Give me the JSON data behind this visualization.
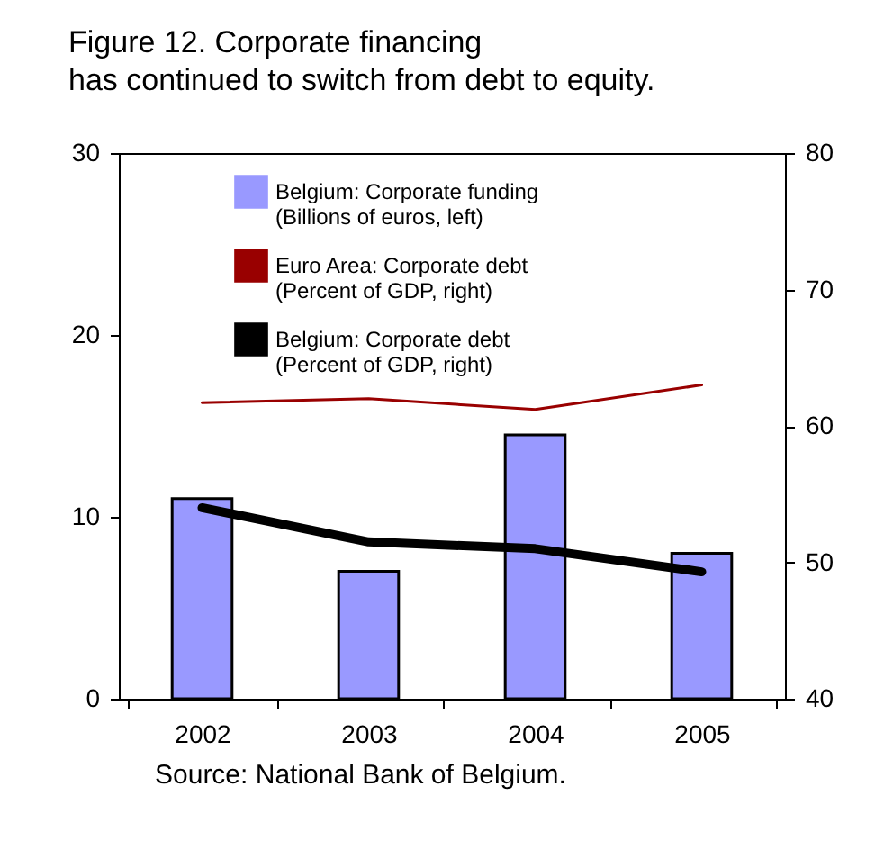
{
  "chart_data": {
    "type": "bar",
    "title": "Figure 12. Corporate financing has continued to switch from debt to equity.",
    "categories": [
      "2002",
      "2003",
      "2004",
      "2005"
    ],
    "series": [
      {
        "name": "Belgium: Corporate funding (Billions of euros, left)",
        "color": "#9999ff",
        "values": [
          11.0,
          7.0,
          14.5,
          8.0
        ]
      },
      {
        "name": "Euro Area: Corporate debt (Percent of GDP, right)",
        "type": "line",
        "axis": "y2",
        "color": "#990000",
        "values": [
          61.7,
          62.0,
          61.2,
          63.0
        ]
      },
      {
        "name": "Belgium: Corporate debt (Percent of GDP, right)",
        "type": "line",
        "axis": "y2",
        "color": "#000000",
        "values": [
          54.0,
          51.5,
          51.0,
          49.3
        ]
      }
    ],
    "ylim": [
      0,
      30
    ],
    "yticks": [
      0,
      10,
      20,
      30
    ],
    "y2lim": [
      40,
      80
    ],
    "y2ticks": [
      40,
      50,
      60,
      70,
      80
    ],
    "grid": false,
    "legend": "top left",
    "annotations": [
      "Source: National Bank of Belgium."
    ]
  }
}
